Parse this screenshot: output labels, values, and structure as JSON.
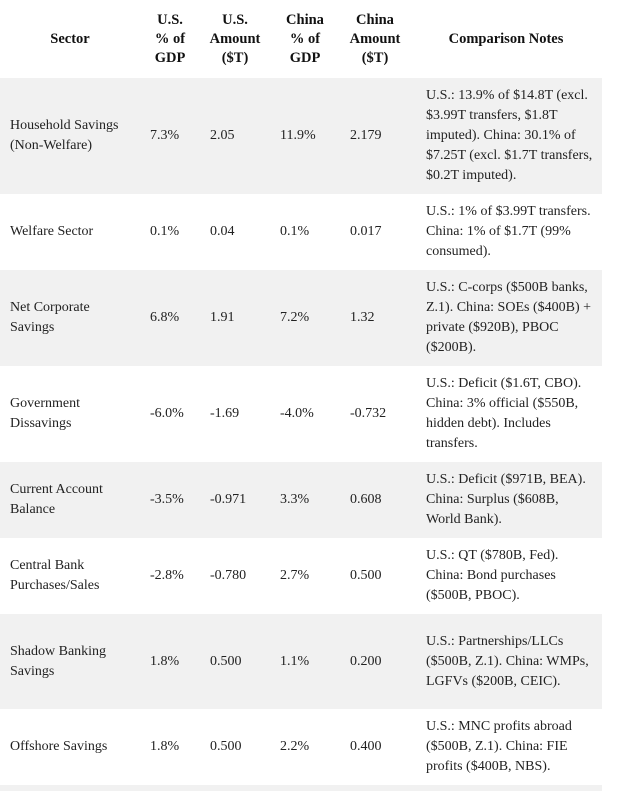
{
  "headers": [
    "Sector",
    "U.S. % of GDP",
    "U.S. Amount ($T)",
    "China % of GDP",
    "China Amount ($T)",
    "Comparison Notes"
  ],
  "header_lines": [
    [
      "Sector"
    ],
    [
      "U.S.",
      "% of",
      "GDP"
    ],
    [
      "U.S.",
      "Amount",
      "($T)"
    ],
    [
      "China",
      "% of",
      "GDP"
    ],
    [
      "China",
      "Amount",
      "($T)"
    ],
    [
      "Comparison Notes"
    ]
  ],
  "rows": [
    {
      "sector": "Household Savings (Non-Welfare)",
      "us_pct": "7.3%",
      "us_amt": "2.05",
      "cn_pct": "11.9%",
      "cn_amt": "2.179",
      "notes": "U.S.: 13.9% of $14.8T (excl. $3.99T transfers, $1.8T imputed). China: 30.1% of $7.25T (excl. $1.7T transfers, $0.2T imputed)."
    },
    {
      "sector": "Welfare Sector",
      "us_pct": "0.1%",
      "us_amt": "0.04",
      "cn_pct": "0.1%",
      "cn_amt": "0.017",
      "notes": "U.S.: 1% of $3.99T transfers. China: 1% of $1.7T (99% consumed)."
    },
    {
      "sector": "Net Corporate Savings",
      "us_pct": "6.8%",
      "us_amt": "1.91",
      "cn_pct": "7.2%",
      "cn_amt": "1.32",
      "notes": "U.S.: C-corps ($500B banks, Z.1). China: SOEs ($400B) + private ($920B), PBOC ($200B)."
    },
    {
      "sector": "Government Dissavings",
      "us_pct": "-6.0%",
      "us_amt": "-1.69",
      "cn_pct": "-4.0%",
      "cn_amt": "-0.732",
      "notes": "U.S.: Deficit ($1.6T, CBO). China: 3% official ($550B, hidden debt). Includes transfers."
    },
    {
      "sector": "Current Account Balance",
      "us_pct": "-3.5%",
      "us_amt": "-0.971",
      "cn_pct": "3.3%",
      "cn_amt": "0.608",
      "notes": "U.S.: Deficit ($971B, BEA). China: Surplus ($608B, World Bank)."
    },
    {
      "sector": "Central Bank Purchases/Sales",
      "us_pct": "-2.8%",
      "us_amt": "-0.780",
      "cn_pct": "2.7%",
      "cn_amt": "0.500",
      "notes": "U.S.: QT ($780B, Fed). China: Bond purchases ($500B, PBOC)."
    },
    {
      "sector": "Shadow Banking Savings",
      "us_pct": "1.8%",
      "us_amt": "0.500",
      "cn_pct": "1.1%",
      "cn_amt": "0.200",
      "notes": "U.S.: Partnerships/LLCs ($500B, Z.1). China: WMPs, LGFVs ($200B, CEIC)."
    },
    {
      "sector": "Offshore Savings",
      "us_pct": "1.8%",
      "us_amt": "0.500",
      "cn_pct": "2.2%",
      "cn_amt": "0.400",
      "notes": "U.S.: MNC profits abroad ($500B, Z.1). China: FIE profits ($400B, NBS)."
    }
  ],
  "colors": {
    "stripe": "#f1f1f1",
    "text": "#222222"
  }
}
